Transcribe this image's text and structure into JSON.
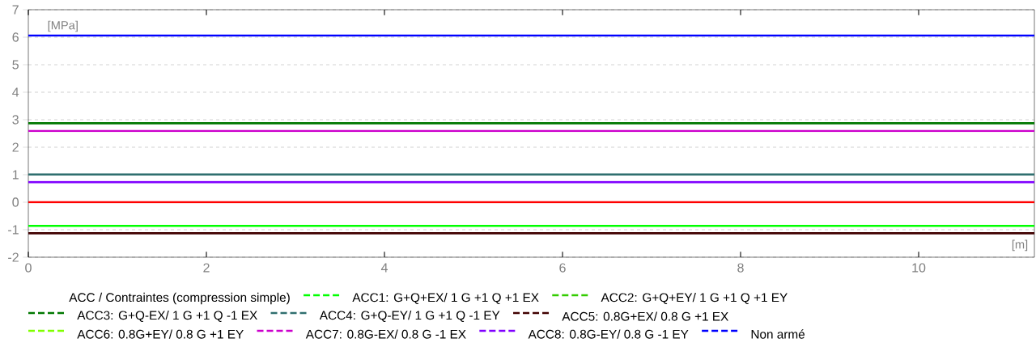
{
  "chart_data": {
    "type": "line",
    "xlabel": "[m]",
    "ylabel": "[MPa]",
    "legend_title": "ACC / Contraintes (compression simple)",
    "x": [
      0,
      11.3
    ],
    "xlim": [
      0,
      11.3
    ],
    "ylim": [
      -2,
      7
    ],
    "xticks": [
      0,
      2,
      4,
      6,
      8,
      10
    ],
    "yticks": [
      -2,
      -1,
      0,
      1,
      2,
      3,
      4,
      5,
      6,
      7
    ],
    "grid": "y",
    "legend": "bottom",
    "marker": "none",
    "line_style": "solid",
    "series": [
      {
        "name": "ACC1: G+Q+EX/ 1 G +1 Q +1 EX",
        "color": "#00ff00",
        "values": [
          -0.86,
          -0.86
        ]
      },
      {
        "name": "ACC2: G+Q+EY/ 1 G +1 Q +1 EY",
        "color": "#33cc00",
        "values": [
          null,
          null
        ]
      },
      {
        "name": "ACC3: G+Q-EX/ 1 G +1 Q -1 EX",
        "color": "#007700",
        "values": [
          2.87,
          2.87
        ]
      },
      {
        "name": "ACC4: G+Q-EY/ 1 G +1 Q -1 EY",
        "color": "#2f6f6f",
        "values": [
          1.01,
          1.01
        ]
      },
      {
        "name": "ACC5: 0.8G+EX/ 0.8 G +1 EX",
        "color": "#400000",
        "values": [
          -1.13,
          -1.13
        ]
      },
      {
        "name": "ACC6: 0.8G+EY/ 0.8 G +1 EY",
        "color": "#80ff00",
        "values": [
          null,
          null
        ]
      },
      {
        "name": "ACC7: 0.8G-EX/ 0.8 G -1 EX",
        "color": "#cc00cc",
        "values": [
          2.59,
          2.59
        ]
      },
      {
        "name": "ACC8: 0.8G-EY/ 0.8 G -1 EY",
        "color": "#8000ff",
        "values": [
          0.73,
          0.73
        ]
      },
      {
        "name": "Non armé",
        "color": "#0000ff",
        "values": [
          6.06,
          6.06
        ]
      },
      {
        "color": "#ff0000",
        "values": [
          0,
          0
        ]
      }
    ]
  }
}
